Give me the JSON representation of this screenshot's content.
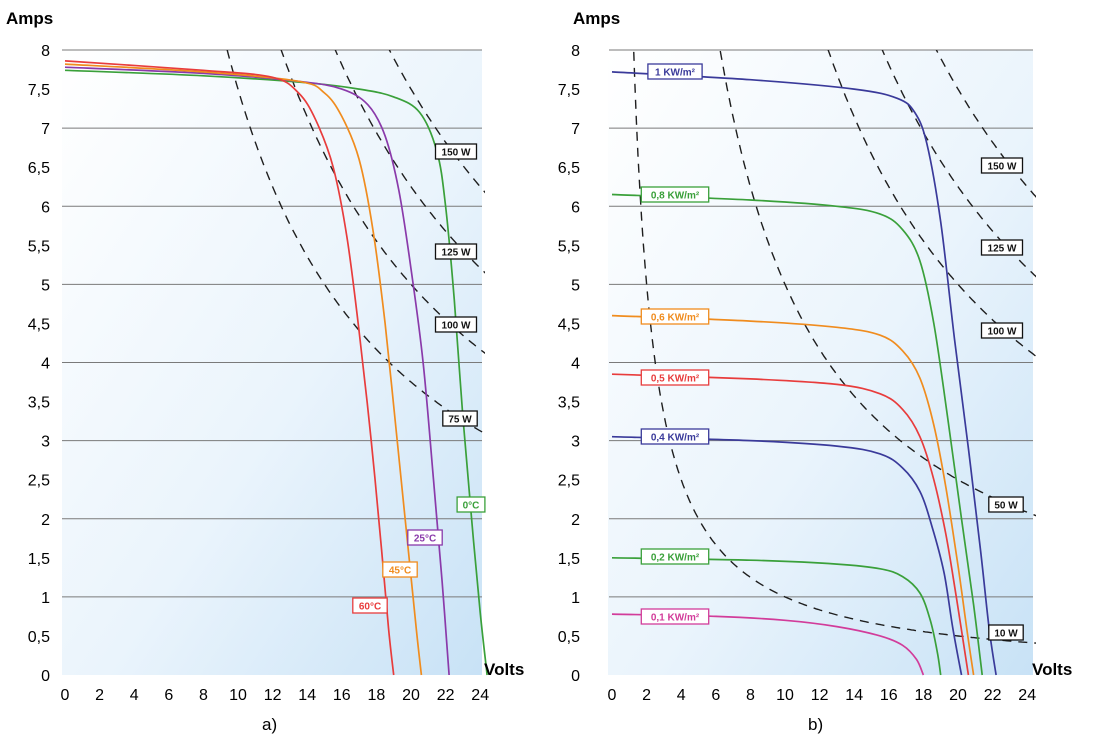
{
  "chart_data": [
    {
      "type": "line",
      "subfigure_label": "a)",
      "ylabel": "Amps",
      "xlabel": "Volts",
      "xlim": [
        0,
        24.5
      ],
      "ylim": [
        0,
        8
      ],
      "x_ticks": [
        "0",
        "2",
        "4",
        "6",
        "8",
        "10",
        "12",
        "14",
        "16",
        "18",
        "20",
        "22",
        "24"
      ],
      "y_ticks": [
        "0",
        "0,5",
        "1",
        "1,5",
        "2",
        "2,5",
        "3",
        "3,5",
        "4",
        "4,5",
        "5",
        "5,5",
        "6",
        "6,5",
        "7",
        "7,5",
        "8"
      ],
      "grid": "horizontal lines at each 1 A",
      "series": [
        {
          "name": "0°C",
          "color": "#3aa03a",
          "isc": 7.74,
          "voc": 24.4,
          "points": [
            [
              0,
              7.74
            ],
            [
              8,
              7.67
            ],
            [
              14,
              7.58
            ],
            [
              17,
              7.5
            ],
            [
              19,
              7.4
            ],
            [
              20.5,
              7.2
            ],
            [
              21.5,
              6.7
            ],
            [
              22,
              6.0
            ],
            [
              22.5,
              4.8
            ],
            [
              23,
              3.3
            ],
            [
              23.5,
              2.0
            ],
            [
              24,
              0.8
            ],
            [
              24.4,
              0
            ]
          ]
        },
        {
          "name": "25°C",
          "color": "#8a3aaa",
          "isc": 7.78,
          "voc": 22.2,
          "points": [
            [
              0,
              7.78
            ],
            [
              8,
              7.7
            ],
            [
              13.5,
              7.6
            ],
            [
              16,
              7.5
            ],
            [
              17.5,
              7.3
            ],
            [
              18.5,
              6.9
            ],
            [
              19.3,
              6.2
            ],
            [
              20,
              5.2
            ],
            [
              20.7,
              4.0
            ],
            [
              21.3,
              2.5
            ],
            [
              21.8,
              1.2
            ],
            [
              22.2,
              0
            ]
          ]
        },
        {
          "name": "45°C",
          "color": "#f08c1e",
          "isc": 7.82,
          "voc": 20.6,
          "points": [
            [
              0,
              7.82
            ],
            [
              8,
              7.72
            ],
            [
              13.5,
              7.6
            ],
            [
              15,
              7.45
            ],
            [
              16,
              7.15
            ],
            [
              17,
              6.6
            ],
            [
              17.8,
              5.7
            ],
            [
              18.5,
              4.5
            ],
            [
              19.2,
              3.0
            ],
            [
              19.8,
              1.7
            ],
            [
              20.3,
              0.6
            ],
            [
              20.6,
              0
            ]
          ]
        },
        {
          "name": "60°C",
          "color": "#e83c3c",
          "isc": 7.86,
          "voc": 19.0,
          "points": [
            [
              0,
              7.86
            ],
            [
              8,
              7.74
            ],
            [
              12,
              7.65
            ],
            [
              13.5,
              7.45
            ],
            [
              14.5,
              7.1
            ],
            [
              15.5,
              6.5
            ],
            [
              16.3,
              5.6
            ],
            [
              17,
              4.4
            ],
            [
              17.7,
              3.0
            ],
            [
              18.3,
              1.6
            ],
            [
              18.7,
              0.6
            ],
            [
              19.0,
              0
            ]
          ]
        }
      ],
      "power_curves": [
        "150 W",
        "125 W",
        "100 W",
        "75 W"
      ],
      "power_values": [
        150,
        125,
        100,
        75
      ]
    },
    {
      "type": "line",
      "subfigure_label": "b)",
      "ylabel": "Amps",
      "xlabel": "Volts",
      "xlim": [
        0,
        24.5
      ],
      "ylim": [
        0,
        8
      ],
      "x_ticks": [
        "0",
        "2",
        "4",
        "6",
        "8",
        "10",
        "12",
        "14",
        "16",
        "18",
        "20",
        "22",
        "24"
      ],
      "y_ticks": [
        "0",
        "0,5",
        "1",
        "1,5",
        "2",
        "2,5",
        "3",
        "3,5",
        "4",
        "4,5",
        "5",
        "5,5",
        "6",
        "6,5",
        "7",
        "7,5",
        "8"
      ],
      "grid": "horizontal lines at each 1 A",
      "series": [
        {
          "name": "1 KW/m²",
          "color": "#3a3a9a",
          "isc": 7.7,
          "voc": 22.2,
          "points": [
            [
              0,
              7.72
            ],
            [
              8,
              7.62
            ],
            [
              14,
              7.5
            ],
            [
              16.5,
              7.38
            ],
            [
              17.5,
              7.2
            ],
            [
              18.2,
              6.8
            ],
            [
              19,
              5.8
            ],
            [
              19.8,
              4.3
            ],
            [
              20.6,
              2.9
            ],
            [
              21.3,
              1.6
            ],
            [
              21.8,
              0.6
            ],
            [
              22.2,
              0
            ]
          ]
        },
        {
          "name": "0,8 KW/m²",
          "color": "#3aa03a",
          "isc": 6.15,
          "voc": 21.4,
          "points": [
            [
              0,
              6.15
            ],
            [
              8,
              6.08
            ],
            [
              13,
              6.0
            ],
            [
              15.5,
              5.9
            ],
            [
              16.8,
              5.7
            ],
            [
              17.8,
              5.3
            ],
            [
              18.6,
              4.5
            ],
            [
              19.4,
              3.3
            ],
            [
              20.2,
              2.0
            ],
            [
              20.9,
              0.9
            ],
            [
              21.4,
              0
            ]
          ]
        },
        {
          "name": "0,6 KW/m²",
          "color": "#f08c1e",
          "isc": 4.6,
          "voc": 20.9,
          "points": [
            [
              0,
              4.6
            ],
            [
              8,
              4.53
            ],
            [
              13,
              4.45
            ],
            [
              15.5,
              4.35
            ],
            [
              16.8,
              4.15
            ],
            [
              17.8,
              3.8
            ],
            [
              18.6,
              3.2
            ],
            [
              19.3,
              2.4
            ],
            [
              20,
              1.4
            ],
            [
              20.5,
              0.6
            ],
            [
              20.9,
              0
            ]
          ]
        },
        {
          "name": "0,5 KW/m²",
          "color": "#e83c3c",
          "isc": 3.85,
          "voc": 20.6,
          "points": [
            [
              0,
              3.85
            ],
            [
              8,
              3.79
            ],
            [
              13,
              3.72
            ],
            [
              15.5,
              3.6
            ],
            [
              16.8,
              3.4
            ],
            [
              17.8,
              3.05
            ],
            [
              18.6,
              2.5
            ],
            [
              19.3,
              1.8
            ],
            [
              19.9,
              1.0
            ],
            [
              20.6,
              0
            ]
          ]
        },
        {
          "name": "0,4 KW/m²",
          "color": "#3a3a9a",
          "isc": 3.05,
          "voc": 20.2,
          "points": [
            [
              0,
              3.05
            ],
            [
              8,
              3.0
            ],
            [
              13,
              2.93
            ],
            [
              15.5,
              2.83
            ],
            [
              16.8,
              2.65
            ],
            [
              17.8,
              2.35
            ],
            [
              18.5,
              1.9
            ],
            [
              19.2,
              1.3
            ],
            [
              19.7,
              0.6
            ],
            [
              20.2,
              0
            ]
          ]
        },
        {
          "name": "0,2 KW/m²",
          "color": "#3aa03a",
          "isc": 1.5,
          "voc": 19.0,
          "points": [
            [
              0,
              1.5
            ],
            [
              8,
              1.47
            ],
            [
              13,
              1.42
            ],
            [
              15.5,
              1.36
            ],
            [
              16.8,
              1.26
            ],
            [
              17.8,
              1.05
            ],
            [
              18.4,
              0.7
            ],
            [
              18.8,
              0.3
            ],
            [
              19.0,
              0
            ]
          ]
        },
        {
          "name": "0,1 KW/m²",
          "color": "#d23c9a",
          "isc": 0.78,
          "voc": 18.0,
          "points": [
            [
              0,
              0.78
            ],
            [
              6,
              0.75
            ],
            [
              10,
              0.7
            ],
            [
              13,
              0.62
            ],
            [
              15.5,
              0.5
            ],
            [
              16.8,
              0.38
            ],
            [
              17.6,
              0.2
            ],
            [
              18.0,
              0
            ]
          ]
        }
      ],
      "power_curves": [
        "150 W",
        "125 W",
        "100 W",
        "50 W",
        "10 W"
      ],
      "power_values": [
        150,
        125,
        100,
        50,
        10
      ]
    }
  ]
}
